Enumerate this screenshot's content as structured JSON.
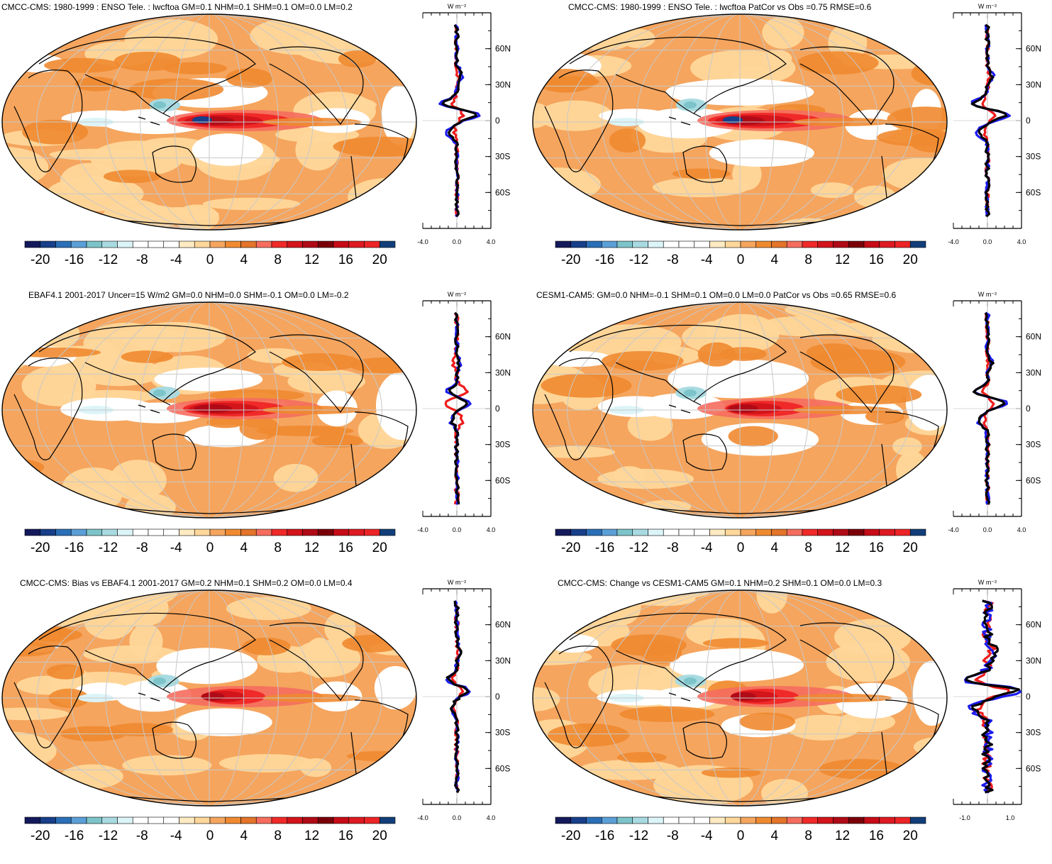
{
  "colorbar": {
    "labels": [
      "-20",
      "-16",
      "-12",
      "-8",
      "-4",
      "0",
      "4",
      "8",
      "12",
      "16",
      "20"
    ],
    "colors": [
      "#14195c",
      "#173f8a",
      "#2a6fb8",
      "#5b9fd9",
      "#7cc4c9",
      "#a8dbe1",
      "#dcf4f7",
      "#ffffff",
      "#ffffff",
      "#ffffff",
      "#ffebc2",
      "#ffd79a",
      "#f5a55e",
      "#ef8a30",
      "#e3742a",
      "#f56d5e",
      "#f02a28",
      "#d3141b",
      "#b00a16",
      "#7a0008",
      "#c80b18",
      "#de1a22",
      "#ec2427",
      "#123f7a"
    ]
  },
  "zonal_unit": "W m⁻²",
  "lat_labels": [
    "60N",
    "30N",
    "0",
    "30S",
    "60S"
  ],
  "panels": [
    {
      "id": "p1",
      "title": "CMCC-CMS: 1980-1999 : ENSO Tele. : lwcftoa GM=0.1 NHM=0.1 SHM=0.1 OM=0.0 LM=0.2",
      "zonal_xlabels": [
        "-4.0",
        "0.0",
        "4.0"
      ],
      "xlim": [
        -4,
        4
      ]
    },
    {
      "id": "p2",
      "title": "CMCC-CMS: 1980-1999 : ENSO Tele. : lwcftoa PatCor vs Obs =0.75 RMSE=0.6",
      "zonal_xlabels": [
        "-4.0",
        "0.0",
        "4.0"
      ],
      "xlim": [
        -4,
        4
      ]
    },
    {
      "id": "p3",
      "title": "EBAF4.1 2001-2017 Uncer=15 W/m2 GM=0.0 NHM=0.0 SHM=-0.1 OM=0.0 LM=-0.2",
      "zonal_xlabels": [
        "-4.0",
        "0.0",
        "4.0"
      ],
      "xlim": [
        -4,
        4
      ]
    },
    {
      "id": "p4",
      "title": "CESM1-CAM5: GM=0.0 NHM=-0.1 SHM=0.1 OM=0.0 LM=0.0 PatCor vs Obs =0.65 RMSE=0.6",
      "zonal_xlabels": [
        "-4.0",
        "0.0",
        "4.0"
      ],
      "xlim": [
        -4,
        4
      ]
    },
    {
      "id": "p5",
      "title": "CMCC-CMS: Bias vs EBAF4.1 2001-2017 GM=0.2 NHM=0.1 SHM=0.2 OM=0.0 LM=0.4",
      "zonal_xlabels": [
        "-4.0",
        "0.0",
        "4.0"
      ],
      "xlim": [
        -4,
        4
      ]
    },
    {
      "id": "p6",
      "title": "CMCC-CMS: Change vs CESM1-CAM5 GM=0.1 NHM=0.2 SHM=0.1 OM=0.0 LM=0.3",
      "zonal_xlabels": [
        "-1.0",
        "1.0"
      ],
      "xlim": [
        -1.5,
        1.5
      ]
    }
  ]
}
